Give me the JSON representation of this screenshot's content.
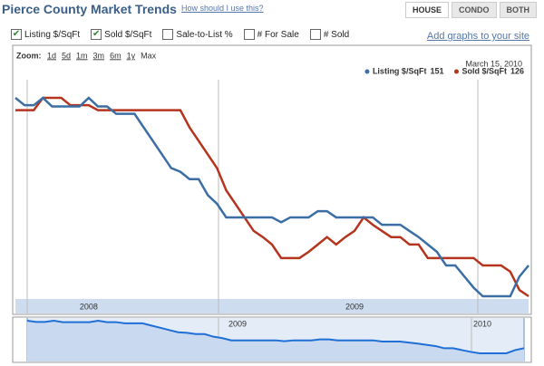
{
  "header": {
    "title": "Pierce County Market Trends",
    "help_link": "How should I use this?"
  },
  "tabs": [
    {
      "label": "HOUSE",
      "active": true
    },
    {
      "label": "CONDO",
      "active": false
    },
    {
      "label": "BOTH",
      "active": false
    }
  ],
  "checkboxes": [
    {
      "label": "Listing $/SqFt",
      "checked": true
    },
    {
      "label": "Sold $/SqFt",
      "checked": true
    },
    {
      "label": "Sale-to-List %",
      "checked": false
    },
    {
      "label": "# For Sale",
      "checked": false
    },
    {
      "label": "# Sold",
      "checked": false
    }
  ],
  "add_graphs_link": "Add graphs to your site",
  "zoom": {
    "label": "Zoom:",
    "options": [
      "1d",
      "5d",
      "1m",
      "3m",
      "6m",
      "1y",
      "Max"
    ]
  },
  "date": "March 15, 2010",
  "chart_data": {
    "type": "line",
    "categories": [
      null,
      null,
      null,
      null,
      null,
      null,
      null,
      null,
      "2008",
      null,
      null,
      null,
      null,
      null,
      null,
      null,
      null,
      null,
      null,
      null,
      null,
      null,
      null,
      null,
      null,
      null,
      null,
      null,
      null,
      null,
      null,
      null,
      null,
      null,
      null,
      null,
      null,
      "2009",
      null,
      null,
      null,
      null,
      null,
      null,
      null,
      null,
      null,
      null,
      null,
      null,
      null,
      null,
      null,
      null,
      null,
      null,
      null
    ],
    "series": [
      {
        "name": "Listing $/SqFt",
        "color": "#3a6ea5",
        "values": [
          287,
          281,
          281,
          287,
          280,
          280,
          280,
          280,
          287,
          280,
          280,
          274,
          274,
          274,
          263,
          252,
          241,
          230,
          227,
          221,
          221,
          208,
          201,
          190,
          190,
          190,
          190,
          190,
          190,
          186,
          190,
          190,
          190,
          195,
          195,
          190,
          190,
          190,
          190,
          190,
          184,
          184,
          184,
          179,
          174,
          168,
          162,
          151,
          151,
          142,
          133,
          126,
          126,
          126,
          126,
          142,
          151
        ]
      },
      {
        "name": "Sold $/SqFt",
        "color": "#b5341e",
        "values": [
          277,
          277,
          277,
          287,
          287,
          287,
          281,
          281,
          281,
          277,
          277,
          277,
          277,
          277,
          277,
          277,
          277,
          277,
          277,
          263,
          252,
          241,
          230,
          212,
          201,
          190,
          179,
          174,
          168,
          157,
          157,
          157,
          162,
          168,
          174,
          168,
          174,
          179,
          190,
          184,
          179,
          174,
          174,
          168,
          168,
          157,
          157,
          157,
          157,
          157,
          157,
          151,
          151,
          151,
          146,
          131,
          126
        ]
      }
    ]
  },
  "navigator": {
    "labels": [
      "2009",
      "2010"
    ]
  }
}
